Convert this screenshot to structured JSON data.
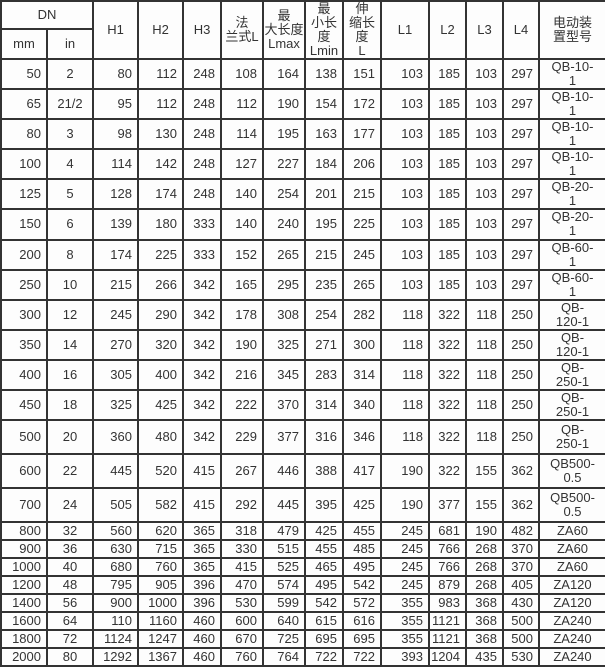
{
  "colors": {
    "border": "#333333",
    "text": "#333333",
    "cell_bg": "#fdfdfd"
  },
  "table": {
    "header": {
      "dn": "DN",
      "mm": "mm",
      "in": "in",
      "cols": [
        "H1",
        "H2",
        "H3",
        "法\n兰式L",
        "最\n大长度\nLmax",
        "最\n小长度\nLmin",
        "伸\n缩长度\nL",
        "L1",
        "L2",
        "L3",
        "L4",
        "电动装\n置型号"
      ]
    },
    "rows": [
      [
        "50",
        "2",
        "80",
        "112",
        "248",
        "108",
        "164",
        "138",
        "151",
        "103",
        "185",
        "103",
        "297",
        "QB-10-\n1"
      ],
      [
        "65",
        "21/2",
        "95",
        "112",
        "248",
        "112",
        "190",
        "154",
        "172",
        "103",
        "185",
        "103",
        "297",
        "QB-10-\n1"
      ],
      [
        "80",
        "3",
        "98",
        "130",
        "248",
        "114",
        "195",
        "163",
        "177",
        "103",
        "185",
        "103",
        "297",
        "QB-10-\n1"
      ],
      [
        "100",
        "4",
        "114",
        "142",
        "248",
        "127",
        "227",
        "184",
        "206",
        "103",
        "185",
        "103",
        "297",
        "QB-10-\n1"
      ],
      [
        "125",
        "5",
        "128",
        "174",
        "248",
        "140",
        "254",
        "201",
        "215",
        "103",
        "185",
        "103",
        "297",
        "QB-20-\n1"
      ],
      [
        "150",
        "6",
        "139",
        "180",
        "333",
        "140",
        "240",
        "195",
        "225",
        "103",
        "185",
        "103",
        "297",
        "QB-20-\n1"
      ],
      [
        "200",
        "8",
        "174",
        "225",
        "333",
        "152",
        "265",
        "215",
        "245",
        "103",
        "185",
        "103",
        "297",
        "QB-60-\n1"
      ],
      [
        "250",
        "10",
        "215",
        "266",
        "342",
        "165",
        "295",
        "235",
        "265",
        "103",
        "185",
        "103",
        "297",
        "QB-60-\n1"
      ],
      [
        "300",
        "12",
        "245",
        "290",
        "342",
        "178",
        "308",
        "254",
        "282",
        "118",
        "322",
        "118",
        "250",
        "QB-\n120-1"
      ],
      [
        "350",
        "14",
        "270",
        "320",
        "342",
        "190",
        "325",
        "271",
        "300",
        "118",
        "322",
        "118",
        "250",
        "QB-\n120-1"
      ],
      [
        "400",
        "16",
        "305",
        "400",
        "342",
        "216",
        "345",
        "283",
        "314",
        "118",
        "322",
        "118",
        "250",
        "QB-\n250-1"
      ],
      [
        "450",
        "18",
        "325",
        "425",
        "342",
        "222",
        "370",
        "314",
        "340",
        "118",
        "322",
        "118",
        "250",
        "QB-\n250-1"
      ],
      [
        "500",
        "20",
        "360",
        "480",
        "342",
        "229",
        "377",
        "316",
        "346",
        "118",
        "322",
        "118",
        "250",
        "QB-\n250-1"
      ],
      [
        "600",
        "22",
        "445",
        "520",
        "415",
        "267",
        "446",
        "388",
        "417",
        "190",
        "322",
        "155",
        "362",
        "QB500-\n0.5"
      ],
      [
        "700",
        "24",
        "505",
        "582",
        "415",
        "292",
        "445",
        "395",
        "425",
        "190",
        "377",
        "155",
        "362",
        "QB500-\n0.5"
      ],
      [
        "800",
        "32",
        "560",
        "620",
        "365",
        "318",
        "479",
        "425",
        "455",
        "245",
        "681",
        "190",
        "482",
        "ZA60"
      ],
      [
        "900",
        "36",
        "630",
        "715",
        "365",
        "330",
        "515",
        "455",
        "485",
        "245",
        "766",
        "268",
        "370",
        "ZA60"
      ],
      [
        "1000",
        "40",
        "680",
        "760",
        "365",
        "415",
        "525",
        "465",
        "495",
        "245",
        "766",
        "268",
        "370",
        "ZA60"
      ],
      [
        "1200",
        "48",
        "795",
        "905",
        "396",
        "470",
        "574",
        "495",
        "542",
        "245",
        "879",
        "268",
        "405",
        "ZA120"
      ],
      [
        "1400",
        "56",
        "900",
        "1000",
        "396",
        "530",
        "599",
        "542",
        "572",
        "355",
        "983",
        "368",
        "430",
        "ZA120"
      ],
      [
        "1600",
        "64",
        "110",
        "1160",
        "460",
        "600",
        "640",
        "615",
        "616",
        "355",
        "1121",
        "368",
        "500",
        "ZA240"
      ],
      [
        "1800",
        "72",
        "1124",
        "1247",
        "460",
        "670",
        "725",
        "695",
        "695",
        "355",
        "1121",
        "368",
        "500",
        "ZA240"
      ],
      [
        "2000",
        "80",
        "1292",
        "1367",
        "460",
        "760",
        "764",
        "722",
        "722",
        "393",
        "1204",
        "435",
        "530",
        "ZA240"
      ]
    ]
  }
}
